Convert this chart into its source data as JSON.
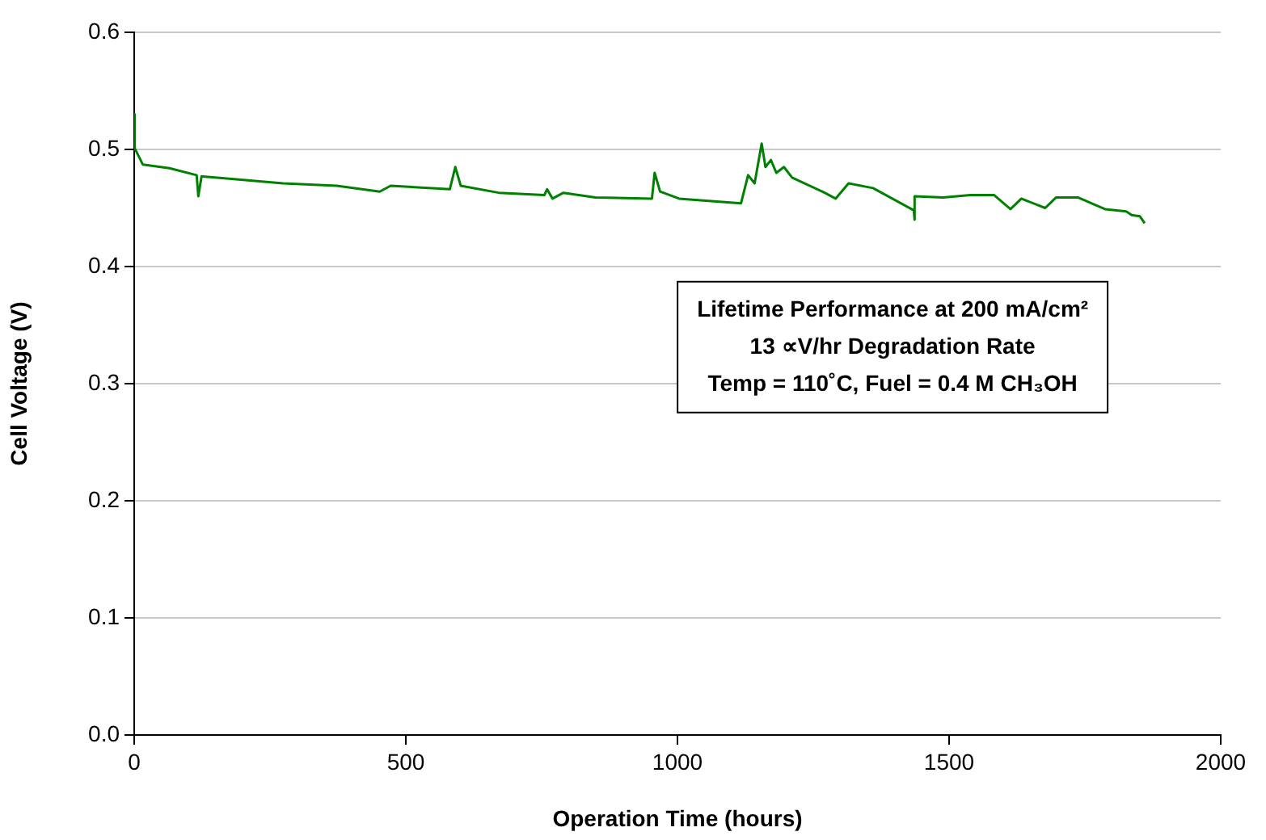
{
  "chart_data": {
    "type": "line",
    "xlabel": "Operation Time (hours)",
    "ylabel": "Cell Voltage (V)",
    "x": [
      0,
      1,
      16,
      65,
      115,
      118,
      124,
      175,
      274,
      373,
      452,
      472,
      581,
      591,
      601,
      671,
      755,
      760,
      770,
      790,
      849,
      953,
      958,
      968,
      1003,
      1117,
      1130,
      1142,
      1155,
      1162,
      1172,
      1182,
      1196,
      1211,
      1271,
      1291,
      1315,
      1360,
      1435,
      1436,
      1437,
      1489,
      1539,
      1583,
      1613,
      1633,
      1677,
      1697,
      1737,
      1787,
      1826,
      1836,
      1851,
      1860
    ],
    "series": [
      {
        "color": "#008000",
        "values": [
          0.53,
          0.501,
          0.487,
          0.484,
          0.478,
          0.46,
          0.477,
          0.475,
          0.471,
          0.469,
          0.464,
          0.469,
          0.466,
          0.485,
          0.469,
          0.463,
          0.461,
          0.466,
          0.458,
          0.463,
          0.459,
          0.458,
          0.48,
          0.464,
          0.458,
          0.454,
          0.478,
          0.471,
          0.505,
          0.485,
          0.491,
          0.48,
          0.485,
          0.476,
          0.463,
          0.458,
          0.471,
          0.467,
          0.448,
          0.44,
          0.46,
          0.459,
          0.461,
          0.461,
          0.449,
          0.458,
          0.45,
          0.459,
          0.459,
          0.449,
          0.447,
          0.444,
          0.443,
          0.437
        ]
      }
    ],
    "xlim": [
      0,
      2000
    ],
    "xticks": [
      0,
      500,
      1000,
      1500,
      2000
    ],
    "ylim": [
      0,
      0.6
    ],
    "yticks": [
      {
        "value": 0,
        "label": "0.0"
      },
      {
        "value": 0.1,
        "label": "0.1"
      },
      {
        "value": 0.2,
        "label": "0.2"
      },
      {
        "value": 0.3,
        "label": "0.3"
      },
      {
        "value": 0.4,
        "label": "0.4"
      },
      {
        "value": 0.5,
        "label": "0.5"
      },
      {
        "value": 0.6,
        "label": "0.6"
      }
    ],
    "grid": "y",
    "marker": "none",
    "line_style": "solid",
    "legend": false,
    "annotations": [
      "Lifetime Performance at 200 mA/cm²",
      "13 ∝V/hr Degradation Rate",
      "Temp = 110˚C, Fuel = 0.4 M CH₃OH"
    ]
  }
}
